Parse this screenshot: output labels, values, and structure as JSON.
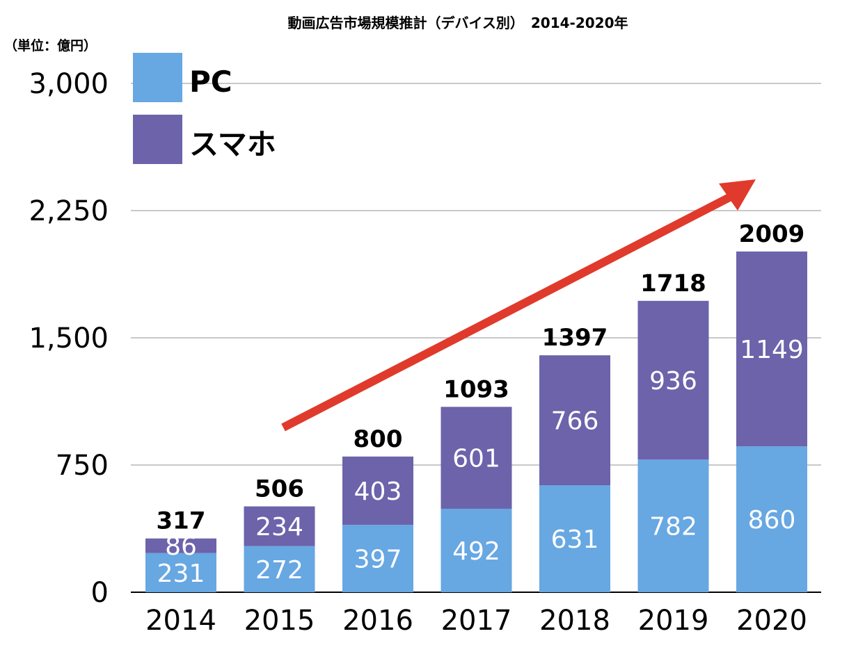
{
  "chart_data": {
    "type": "bar",
    "stacked": true,
    "title": "動画広告市場規模推計（デバイス別）　2014-2020年",
    "unit_label": "（単位：億円）",
    "categories": [
      "2014",
      "2015",
      "2016",
      "2017",
      "2018",
      "2019",
      "2020"
    ],
    "series": [
      {
        "name": "PC",
        "color": "#67a7e2",
        "values": [
          231,
          272,
          397,
          492,
          631,
          782,
          860
        ]
      },
      {
        "name": "スマホ",
        "color": "#6c63ab",
        "values": [
          86,
          234,
          403,
          601,
          766,
          936,
          1149
        ]
      }
    ],
    "totals": [
      317,
      506,
      800,
      1093,
      1397,
      1718,
      2009
    ],
    "ylim": [
      0,
      3000
    ],
    "yticks": [
      0,
      750,
      1500,
      2250,
      3000
    ],
    "ytick_labels": [
      "0",
      "750",
      "1,500",
      "2,250",
      "3,000"
    ],
    "grid": true,
    "legend_placement": "top-left",
    "arrow": {
      "color": "#e03a2c",
      "meaning": "upward trend"
    }
  }
}
